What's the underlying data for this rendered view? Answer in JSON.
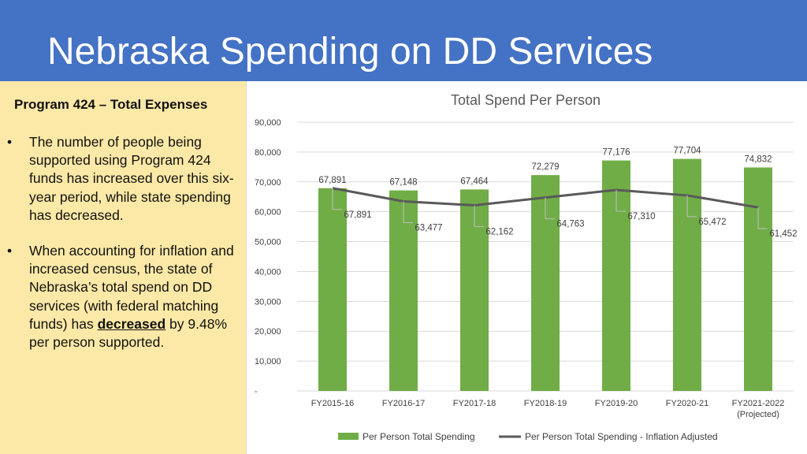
{
  "header": {
    "title": "Nebraska Spending on DD Services"
  },
  "sidebar": {
    "heading": "Program 424 – Total Expenses",
    "bullet_symbol": "•",
    "bullet1": "The number of people being supported using Program 424 funds has increased over this six-year period, while state spending has decreased.",
    "bullet2_before": "When accounting for inflation and increased census, the state of Nebraska’s total spend on DD services (with federal matching funds) has ",
    "bullet2_emphasis": "decreased",
    "bullet2_after": " by 9.48% per person supported."
  },
  "chart_data": {
    "type": "bar",
    "title": "Total Spend Per Person",
    "categories": [
      "FY2015-16",
      "FY2016-17",
      "FY2017-18",
      "FY2018-19",
      "FY2019-20",
      "FY2020-21",
      "FY2021-2022"
    ],
    "category_sublabels": [
      "",
      "",
      "",
      "",
      "",
      "",
      "(Projected)"
    ],
    "y_ticks": [
      "-",
      "10,000",
      "20,000",
      "30,000",
      "40,000",
      "50,000",
      "60,000",
      "70,000",
      "80,000",
      "90,000"
    ],
    "ylim": [
      0,
      90000
    ],
    "grid": true,
    "legend_position": "bottom",
    "series": [
      {
        "name": "Per Person Total Spending",
        "type": "bar",
        "color": "#70ad47",
        "values": [
          67891,
          67148,
          67464,
          72279,
          77176,
          77704,
          74832
        ],
        "labels": [
          "67,891",
          "67,148",
          "67,464",
          "72,279",
          "77,176",
          "77,704",
          "74,832"
        ]
      },
      {
        "name": "Per Person Total Spending - Inflation Adjusted",
        "type": "line",
        "color": "#595959",
        "values": [
          67891,
          63477,
          62162,
          64763,
          67310,
          65472,
          61452
        ],
        "labels": [
          "67,891",
          "63,477",
          "62,162",
          "64,763",
          "67,310",
          "65,472",
          "61,452"
        ]
      }
    ]
  }
}
